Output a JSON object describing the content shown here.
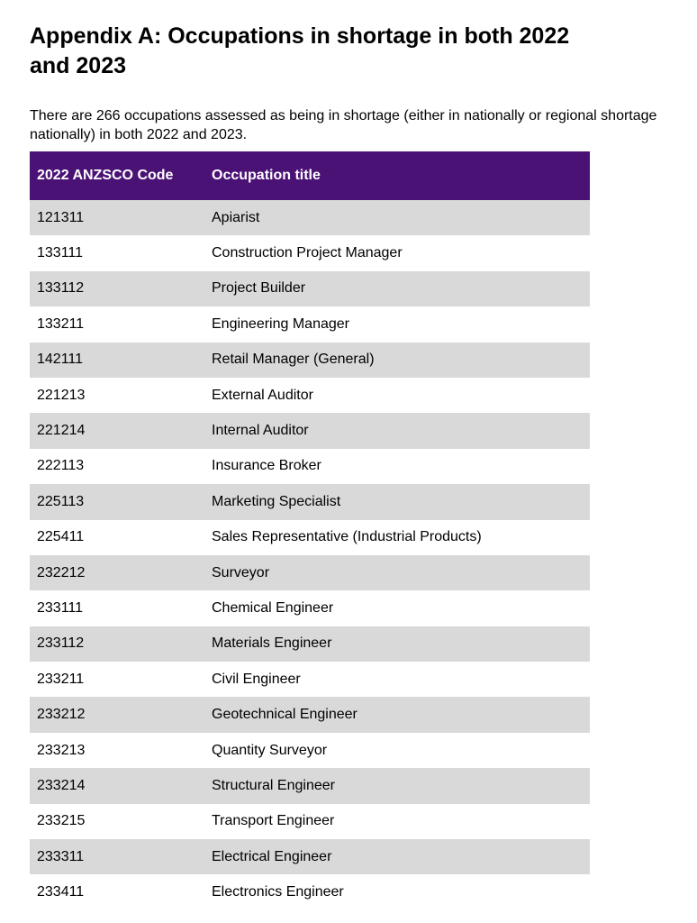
{
  "document": {
    "title": "Appendix A: Occupations in shortage in both 2022 and 2023",
    "intro": "There are 266 occupations assessed as being in shortage (either in nationally or regional shortage nationally) in both 2022 and 2023."
  },
  "table": {
    "header_bg": "#4b1275",
    "stripe_color": "#d9d9d9",
    "columns": [
      "2022 ANZSCO Code",
      "Occupation title"
    ],
    "rows": [
      {
        "code": "121311",
        "title": "Apiarist"
      },
      {
        "code": "133111",
        "title": "Construction Project Manager"
      },
      {
        "code": "133112",
        "title": "Project Builder"
      },
      {
        "code": "133211",
        "title": "Engineering Manager"
      },
      {
        "code": "142111",
        "title": "Retail Manager (General)"
      },
      {
        "code": "221213",
        "title": "External Auditor"
      },
      {
        "code": "221214",
        "title": "Internal Auditor"
      },
      {
        "code": "222113",
        "title": "Insurance Broker"
      },
      {
        "code": "225113",
        "title": "Marketing Specialist"
      },
      {
        "code": "225411",
        "title": "Sales Representative (Industrial Products)"
      },
      {
        "code": "232212",
        "title": "Surveyor"
      },
      {
        "code": "233111",
        "title": "Chemical Engineer"
      },
      {
        "code": "233112",
        "title": "Materials Engineer"
      },
      {
        "code": "233211",
        "title": "Civil Engineer"
      },
      {
        "code": "233212",
        "title": "Geotechnical Engineer"
      },
      {
        "code": "233213",
        "title": "Quantity Surveyor"
      },
      {
        "code": "233214",
        "title": "Structural Engineer"
      },
      {
        "code": "233215",
        "title": "Transport Engineer"
      },
      {
        "code": "233311",
        "title": "Electrical Engineer"
      },
      {
        "code": "233411",
        "title": "Electronics Engineer"
      }
    ]
  }
}
